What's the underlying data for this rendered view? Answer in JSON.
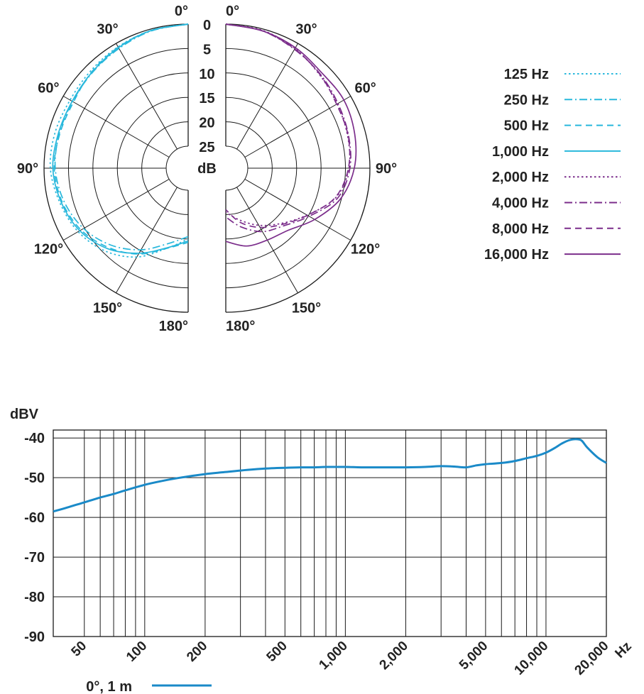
{
  "chart_data": [
    {
      "type": "polar",
      "angle_labels_left": [
        "0°",
        "30°",
        "60°",
        "90°",
        "120°",
        "150°",
        "180°"
      ],
      "angle_labels_right": [
        "0°",
        "30°",
        "60°",
        "90°",
        "120°",
        "150°",
        "180°"
      ],
      "radial_ticks": [
        0,
        5,
        10,
        15,
        20,
        25
      ],
      "radial_unit": "dB",
      "rlim": [
        0,
        25
      ],
      "angle_step_deg": 30,
      "series": [
        {
          "name": "125 Hz",
          "color": "#29b8dc",
          "dash": "dot",
          "side": "left",
          "points": [
            [
              0,
              0
            ],
            [
              15,
              0.3
            ],
            [
              30,
              0.8
            ],
            [
              45,
              1.3
            ],
            [
              60,
              1.6
            ],
            [
              75,
              1.3
            ],
            [
              90,
              1.3
            ],
            [
              105,
              2.3
            ],
            [
              120,
              3.5
            ],
            [
              135,
              5.5
            ],
            [
              150,
              8.5
            ],
            [
              165,
              12.5
            ],
            [
              180,
              15
            ]
          ]
        },
        {
          "name": "250 Hz",
          "color": "#29b8dc",
          "dash": "dashdot",
          "side": "left",
          "points": [
            [
              0,
              0
            ],
            [
              15,
              0.4
            ],
            [
              30,
              1.2
            ],
            [
              45,
              1.8
            ],
            [
              60,
              2.2
            ],
            [
              75,
              2.2
            ],
            [
              90,
              2.3
            ],
            [
              105,
              3.2
            ],
            [
              120,
              4.8
            ],
            [
              135,
              7.2
            ],
            [
              150,
              10.2
            ],
            [
              165,
              13.5
            ],
            [
              180,
              15.5
            ]
          ]
        },
        {
          "name": "500 Hz",
          "color": "#29b8dc",
          "dash": "dash",
          "side": "left",
          "points": [
            [
              0,
              0
            ],
            [
              15,
              0.3
            ],
            [
              30,
              0.9
            ],
            [
              45,
              1.6
            ],
            [
              60,
              2.4
            ],
            [
              75,
              2.3
            ],
            [
              90,
              2.1
            ],
            [
              105,
              2.8
            ],
            [
              120,
              4.2
            ],
            [
              135,
              6.5
            ],
            [
              150,
              9.2
            ],
            [
              165,
              12.5
            ],
            [
              180,
              14.3
            ]
          ]
        },
        {
          "name": "1,000 Hz",
          "color": "#29b8dc",
          "dash": "solid",
          "side": "left",
          "points": [
            [
              0,
              0
            ],
            [
              15,
              0.3
            ],
            [
              30,
              1.0
            ],
            [
              45,
              1.7
            ],
            [
              60,
              2.1
            ],
            [
              75,
              2.0
            ],
            [
              90,
              1.8
            ],
            [
              105,
              2.6
            ],
            [
              120,
              3.9
            ],
            [
              135,
              6.2
            ],
            [
              150,
              9.4
            ],
            [
              165,
              12.6
            ],
            [
              180,
              14.6
            ]
          ]
        },
        {
          "name": "2,000 Hz",
          "color": "#7b2d8b",
          "dash": "dot",
          "side": "right",
          "points": [
            [
              0,
              0
            ],
            [
              15,
              0.3
            ],
            [
              30,
              1.2
            ],
            [
              45,
              2.4
            ],
            [
              60,
              3.2
            ],
            [
              75,
              3.7
            ],
            [
              90,
              4.3
            ],
            [
              105,
              6.2
            ],
            [
              120,
              10.3
            ],
            [
              135,
              13.5
            ],
            [
              150,
              16.0
            ],
            [
              165,
              18.5
            ],
            [
              180,
              20.5
            ]
          ]
        },
        {
          "name": "4,000 Hz",
          "color": "#7b2d8b",
          "dash": "dashdot",
          "side": "right",
          "points": [
            [
              0,
              0
            ],
            [
              15,
              0.4
            ],
            [
              30,
              1.4
            ],
            [
              45,
              2.2
            ],
            [
              60,
              3.0
            ],
            [
              75,
              3.5
            ],
            [
              90,
              4.1
            ],
            [
              105,
              5.8
            ],
            [
              120,
              9.8
            ],
            [
              135,
              12.8
            ],
            [
              150,
              14.5
            ],
            [
              165,
              17.0
            ],
            [
              180,
              19.5
            ]
          ]
        },
        {
          "name": "8,000 Hz",
          "color": "#7b2d8b",
          "dash": "dash",
          "side": "right",
          "points": [
            [
              0,
              0
            ],
            [
              15,
              0.4
            ],
            [
              30,
              1.3
            ],
            [
              45,
              2.3
            ],
            [
              60,
              3.3
            ],
            [
              75,
              3.6
            ],
            [
              90,
              4.4
            ],
            [
              105,
              6.3
            ],
            [
              120,
              10.2
            ],
            [
              135,
              13.2
            ],
            [
              150,
              15.5
            ],
            [
              165,
              18.0
            ],
            [
              180,
              21.0
            ]
          ]
        },
        {
          "name": "16,000 Hz",
          "color": "#7b2d8b",
          "dash": "solid",
          "side": "right",
          "points": [
            [
              0,
              0
            ],
            [
              15,
              0.4
            ],
            [
              30,
              1.0
            ],
            [
              45,
              1.8
            ],
            [
              60,
              1.6
            ],
            [
              75,
              2.2
            ],
            [
              90,
              3.2
            ],
            [
              105,
              5.2
            ],
            [
              120,
              8.5
            ],
            [
              135,
              11.5
            ],
            [
              150,
              12.5
            ],
            [
              165,
              13.0
            ],
            [
              180,
              14.5
            ]
          ]
        }
      ]
    },
    {
      "type": "line",
      "ylabel": "dBV",
      "xlabel": "Hz",
      "xscale": "log",
      "xlim": [
        35,
        20000
      ],
      "ylim": [
        -90,
        -38
      ],
      "y_ticks": [
        -40,
        -50,
        -60,
        -70,
        -80,
        -90
      ],
      "x_grid": [
        50,
        60,
        70,
        80,
        90,
        100,
        200,
        300,
        400,
        500,
        600,
        700,
        800,
        900,
        1000,
        2000,
        3000,
        4000,
        5000,
        6000,
        7000,
        8000,
        9000,
        10000,
        20000
      ],
      "x_tick_labels": [
        {
          "value": 50,
          "label": "50"
        },
        {
          "value": 100,
          "label": "100"
        },
        {
          "value": 200,
          "label": "200"
        },
        {
          "value": 500,
          "label": "500"
        },
        {
          "value": 1000,
          "label": "1,000"
        },
        {
          "value": 2000,
          "label": "2,000"
        },
        {
          "value": 5000,
          "label": "5,000"
        },
        {
          "value": 10000,
          "label": "10,000"
        },
        {
          "value": 20000,
          "label": "20,000"
        }
      ],
      "grid": true,
      "series": [
        {
          "name": "0°, 1 m",
          "color": "#1a8ac8",
          "x": [
            35,
            40,
            50,
            60,
            70,
            80,
            100,
            120,
            150,
            200,
            250,
            300,
            400,
            500,
            600,
            700,
            800,
            1000,
            1200,
            1500,
            2000,
            2500,
            3000,
            3500,
            4000,
            4500,
            5000,
            6000,
            7000,
            8000,
            9000,
            10000,
            11000,
            12000,
            13000,
            14000,
            15000,
            16000,
            18000,
            20000
          ],
          "y": [
            -58.5,
            -57.7,
            -56.2,
            -55.0,
            -54.1,
            -53.2,
            -51.8,
            -50.9,
            -50.0,
            -49.1,
            -48.6,
            -48.2,
            -47.7,
            -47.5,
            -47.4,
            -47.4,
            -47.3,
            -47.3,
            -47.4,
            -47.4,
            -47.4,
            -47.3,
            -47.1,
            -47.2,
            -47.4,
            -46.9,
            -46.6,
            -46.3,
            -45.8,
            -45.1,
            -44.5,
            -43.7,
            -42.6,
            -41.4,
            -40.6,
            -40.3,
            -40.6,
            -42.3,
            -44.8,
            -46.3
          ]
        }
      ]
    }
  ]
}
